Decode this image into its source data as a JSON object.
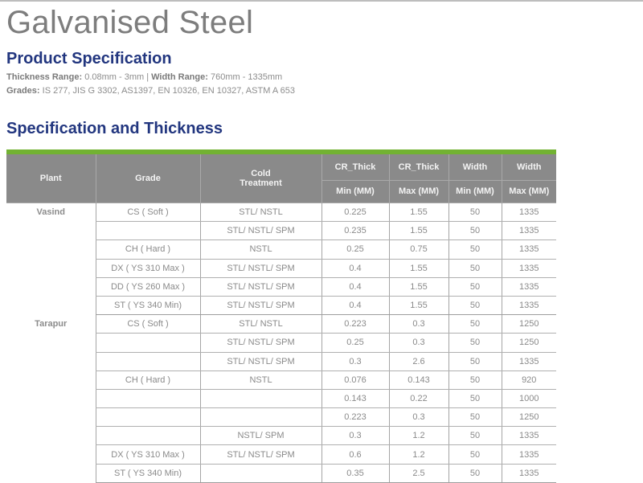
{
  "page": {
    "title": "Galvanised Steel",
    "product_spec_heading": "Product Specification",
    "thickness_label": "Thickness Range:",
    "thickness_value": " 0.08mm - 3mm | ",
    "width_label": "Width Range:",
    "width_value": " 760mm - 1335mm",
    "grades_label": "Grades:",
    "grades_value": " IS 277, JIS G 3302, AS1397, EN 10326, EN 10327, ASTM A 653",
    "spec_thickness_heading": "Specification and Thickness"
  },
  "colors": {
    "title": "#7d7d7d",
    "heading": "#22367f",
    "accent_bar": "#72b232",
    "header_bg": "#8a8a8a"
  },
  "table": {
    "headers": {
      "plant": "Plant",
      "grade": "Grade",
      "cold_treatment_1": "Cold",
      "cold_treatment_2": "Treatment",
      "cr_thick_min_top": "CR_Thick",
      "cr_thick_max_top": "CR_Thick",
      "width_min_top": "Width",
      "width_max_top": "Width",
      "cr_thick_min_sub": "Min (MM)",
      "cr_thick_max_sub": "Max (MM)",
      "width_min_sub": "Min (MM)",
      "width_max_sub": "Max (MM)"
    },
    "groups": [
      {
        "plant": "Vasind",
        "rows": [
          {
            "grade": "CS ( Soft )",
            "cold": "STL/ NSTL",
            "cr_min": "0.225",
            "cr_max": "1.55",
            "w_min": "50",
            "w_max": "1335"
          },
          {
            "grade": "",
            "cold": "STL/ NSTL/ SPM",
            "cr_min": "0.235",
            "cr_max": "1.55",
            "w_min": "50",
            "w_max": "1335"
          },
          {
            "grade": "CH ( Hard )",
            "cold": "NSTL",
            "cr_min": "0.25",
            "cr_max": "0.75",
            "w_min": "50",
            "w_max": "1335"
          },
          {
            "grade": "DX ( YS 310 Max )",
            "cold": "STL/ NSTL/ SPM",
            "cr_min": "0.4",
            "cr_max": "1.55",
            "w_min": "50",
            "w_max": "1335"
          },
          {
            "grade": "DD ( YS 260 Max )",
            "cold": "STL/ NSTL/ SPM",
            "cr_min": "0.4",
            "cr_max": "1.55",
            "w_min": "50",
            "w_max": "1335"
          },
          {
            "grade": "ST ( YS 340 Min)",
            "cold": "STL/ NSTL/ SPM",
            "cr_min": "0.4",
            "cr_max": "1.55",
            "w_min": "50",
            "w_max": "1335"
          }
        ]
      },
      {
        "plant": "Tarapur",
        "rows": [
          {
            "grade": "CS ( Soft )",
            "cold": "STL/ NSTL",
            "cr_min": "0.223",
            "cr_max": "0.3",
            "w_min": "50",
            "w_max": "1250"
          },
          {
            "grade": "",
            "cold": "STL/ NSTL/ SPM",
            "cr_min": "0.25",
            "cr_max": "0.3",
            "w_min": "50",
            "w_max": "1250"
          },
          {
            "grade": "",
            "cold": "STL/ NSTL/ SPM",
            "cr_min": "0.3",
            "cr_max": "2.6",
            "w_min": "50",
            "w_max": "1335"
          },
          {
            "grade": "CH ( Hard )",
            "cold": "NSTL",
            "cr_min": "0.076",
            "cr_max": "0.143",
            "w_min": "50",
            "w_max": "920"
          },
          {
            "grade": "",
            "cold": "",
            "cr_min": "0.143",
            "cr_max": "0.22",
            "w_min": "50",
            "w_max": "1000"
          },
          {
            "grade": "",
            "cold": "",
            "cr_min": "0.223",
            "cr_max": "0.3",
            "w_min": "50",
            "w_max": "1250"
          },
          {
            "grade": "",
            "cold": "NSTL/ SPM",
            "cr_min": "0.3",
            "cr_max": "1.2",
            "w_min": "50",
            "w_max": "1335"
          },
          {
            "grade": "DX ( YS 310 Max )",
            "cold": "STL/ NSTL/ SPM",
            "cr_min": "0.6",
            "cr_max": "1.2",
            "w_min": "50",
            "w_max": "1335"
          },
          {
            "grade": "ST ( YS 340 Min)",
            "cold": "",
            "cr_min": "0.35",
            "cr_max": "2.5",
            "w_min": "50",
            "w_max": "1335"
          }
        ]
      }
    ]
  }
}
